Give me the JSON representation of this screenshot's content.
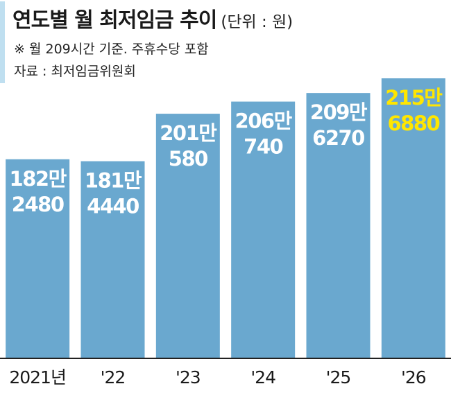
{
  "header": {
    "title": "연도별 월 최저임금 추이",
    "unit": "(단위 : 원)",
    "note": "※ 월 209시간 기준. 주휴수당 포함",
    "source": "자료 : 최저임금위원회"
  },
  "colors": {
    "bar": "#6aa8cf",
    "highlight_label": "#ffe600",
    "label": "#ffffff",
    "accent": "#bfdff0",
    "axis": "#222222"
  },
  "chart_data": {
    "type": "bar",
    "categories": [
      "2021년",
      "'22",
      "'23",
      "'24",
      "'25",
      "'26"
    ],
    "values": [
      1822480,
      1814440,
      2010580,
      2060740,
      2096270,
      2156880
    ],
    "data_labels": [
      [
        "182만",
        "2480"
      ],
      [
        "181만",
        "4440"
      ],
      [
        "201만",
        "580"
      ],
      [
        "206만",
        "740"
      ],
      [
        "209만",
        "6270"
      ],
      [
        "215만",
        "6880"
      ]
    ],
    "highlight_index": 5,
    "title": "연도별 월 최저임금 추이",
    "xlabel": "",
    "ylabel": "",
    "unit": "원",
    "grid": false,
    "legend": "none"
  }
}
